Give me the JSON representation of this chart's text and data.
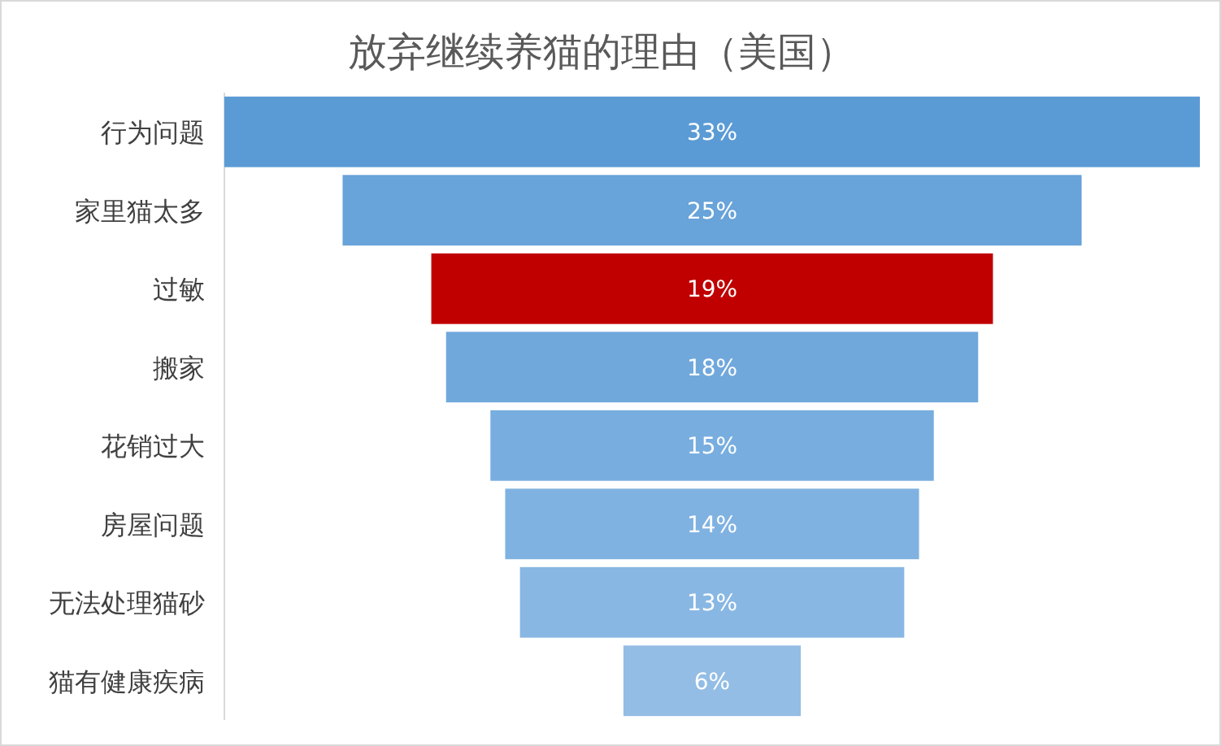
{
  "chart_data": {
    "type": "other",
    "title": "放弃继续养猫的理由（美国）",
    "categories": [
      "行为问题",
      "家里猫太多",
      "过敏",
      "搬家",
      "花销过大",
      "房屋问题",
      "无法处理猫砂",
      "猫有健康疾病"
    ],
    "values": [
      33,
      25,
      19,
      18,
      15,
      14,
      13,
      6
    ],
    "colors": [
      "#5b9bd5",
      "#68a3d9",
      "#c00000",
      "#70a8dc",
      "#78addf",
      "#80b2e1",
      "#88b7e3",
      "#93bde5"
    ],
    "value_labels": [
      "33%",
      "25%",
      "19%",
      "18%",
      "15%",
      "14%",
      "13%",
      "6%"
    ]
  }
}
